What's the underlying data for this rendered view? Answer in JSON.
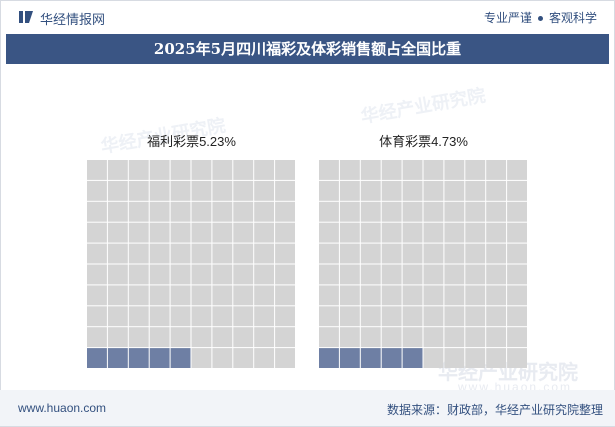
{
  "header": {
    "brand": "华经情报网",
    "tagline_left": "专业严谨",
    "tagline_right": "客观科学"
  },
  "title": "2025年5月四川福彩及体彩销售额占全国比重",
  "watermark": {
    "cn": "华经产业研究院",
    "url": "www.huaon.com"
  },
  "footer": {
    "url": "www.huaon.com",
    "source": "数据来源：财政部，华经产业研究院整理"
  },
  "colors": {
    "filled": "#6e7fa4",
    "empty": "#d4d4d4",
    "title_bar": "#3a5584",
    "brand": "#33507f"
  },
  "chart_data": [
    {
      "type": "waffle",
      "label": "福利彩票5.23%",
      "name": "福利彩票",
      "value": 5.23,
      "unit": "%",
      "grid": [
        10,
        10
      ]
    },
    {
      "type": "waffle",
      "label": "体育彩票4.73%",
      "name": "体育彩票",
      "value": 4.73,
      "unit": "%",
      "grid": [
        10,
        10
      ]
    }
  ]
}
